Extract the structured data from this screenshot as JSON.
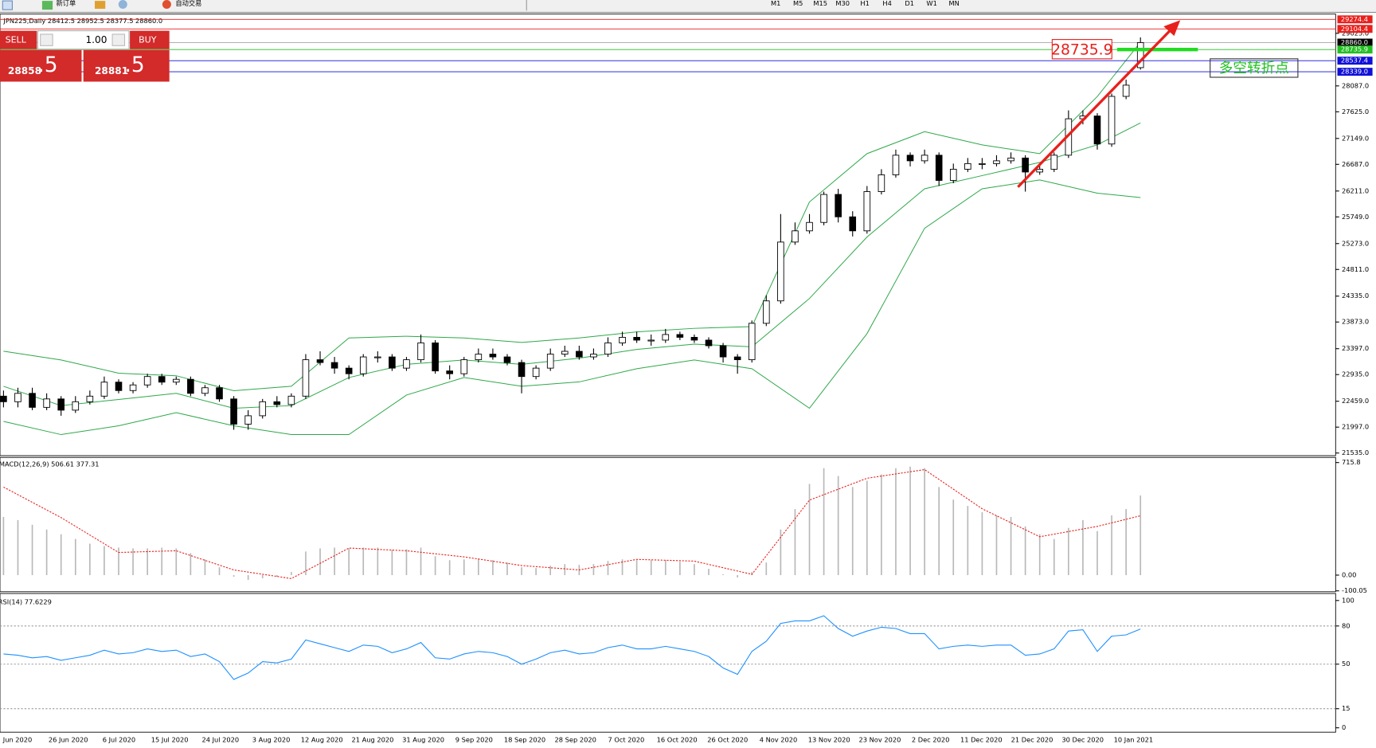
{
  "toolbar": {
    "new_order": "新订单",
    "auto_trading": "自动交易",
    "timeframes": [
      "M1",
      "M5",
      "M15",
      "M30",
      "H1",
      "H4",
      "D1",
      "W1",
      "MN"
    ]
  },
  "trade_panel": {
    "sell": "SELL",
    "buy": "BUY",
    "lots": "1.00",
    "sell_price_main": "28858",
    "sell_price_tail": ".5",
    "buy_price_main": "28881",
    "buy_price_tail": ".5"
  },
  "chart_data": [
    {
      "type": "candlestick",
      "title": "JPN225,Daily  28412.5 28952.5 28377.5 28860.0",
      "ylim": [
        21488,
        29338
      ],
      "yticks": [
        {
          "value": 29025,
          "label": "29025.0"
        },
        {
          "value": 28087,
          "label": "28087.0"
        },
        {
          "value": 27625,
          "label": "27625.0"
        },
        {
          "value": 27149,
          "label": "27149.0"
        },
        {
          "value": 26687,
          "label": "26687.0"
        },
        {
          "value": 26211,
          "label": "26211.0"
        },
        {
          "value": 25749,
          "label": "25749.0"
        },
        {
          "value": 25273,
          "label": "25273.0"
        },
        {
          "value": 24811,
          "label": "24811.0"
        },
        {
          "value": 24335,
          "label": "24335.0"
        },
        {
          "value": 23873,
          "label": "23873.0"
        },
        {
          "value": 23397,
          "label": "23397.0"
        },
        {
          "value": 22935,
          "label": "22935.0"
        },
        {
          "value": 22459,
          "label": "22459.0"
        },
        {
          "value": 21997,
          "label": "21997.0"
        },
        {
          "value": 21535,
          "label": "21535.0"
        }
      ],
      "date_labels": [
        "Jun 2020",
        "26 Jun 2020",
        "6 Jul 2020",
        "15 Jul 2020",
        "24 Jul 2020",
        "3 Aug 2020",
        "12 Aug 2020",
        "21 Aug 2020",
        "31 Aug 2020",
        "9 Sep 2020",
        "18 Sep 2020",
        "28 Sep 2020",
        "7 Oct 2020",
        "16 Oct 2020",
        "26 Oct 2020",
        "4 Nov 2020",
        "13 Nov 2020",
        "23 Nov 2020",
        "2 Dec 2020",
        "11 Dec 2020",
        "21 Dec 2020",
        "30 Dec 2020",
        "10 Jan 2021"
      ],
      "open": [
        22550,
        22450,
        22600,
        22350,
        22500,
        22300,
        22450,
        22550,
        22800,
        22650,
        22750,
        22900,
        22800,
        22850,
        22600,
        22700,
        22500,
        22050,
        22200,
        22450,
        22400,
        22550,
        23200,
        23150,
        23050,
        22950,
        23250,
        23250,
        23050,
        23200,
        23500,
        23000,
        22950,
        23200,
        23300,
        23250,
        23150,
        22900,
        23050,
        23300,
        23350,
        23250,
        23300,
        23500,
        23600,
        23550,
        23550,
        23650,
        23600,
        23550,
        23450,
        23250,
        23200,
        23850,
        24250,
        25300,
        25500,
        25650,
        26150,
        25750,
        25500,
        26200,
        26500,
        26850,
        26750,
        26850,
        26400,
        26600,
        26700,
        26700,
        26750,
        26800,
        26550,
        26600,
        26850,
        27500,
        27550,
        27050,
        27900,
        28412.5
      ],
      "high": [
        22650,
        22700,
        22700,
        22600,
        22550,
        22550,
        22650,
        22900,
        22850,
        22800,
        22950,
        22950,
        22900,
        22900,
        22750,
        22750,
        22550,
        22300,
        22500,
        22550,
        22600,
        23300,
        23350,
        23250,
        23100,
        23300,
        23350,
        23300,
        23250,
        23650,
        23550,
        23100,
        23250,
        23400,
        23400,
        23300,
        23200,
        23100,
        23400,
        23450,
        23450,
        23400,
        23600,
        23700,
        23700,
        23650,
        23750,
        23700,
        23650,
        23600,
        23500,
        23300,
        23900,
        24350,
        25800,
        25650,
        25800,
        26200,
        26250,
        25850,
        26300,
        26600,
        26950,
        26900,
        26950,
        26900,
        26700,
        26800,
        26800,
        26850,
        26900,
        26850,
        26700,
        26900,
        27650,
        27650,
        27600,
        27950,
        28200,
        28952.5
      ],
      "low": [
        22350,
        22350,
        22300,
        22300,
        22200,
        22250,
        22400,
        22500,
        22600,
        22600,
        22700,
        22750,
        22750,
        22550,
        22550,
        22450,
        21950,
        21950,
        22150,
        22350,
        22350,
        22500,
        23100,
        22950,
        22850,
        22900,
        23150,
        23000,
        23000,
        23150,
        22950,
        22850,
        22900,
        23150,
        23200,
        23100,
        22600,
        22850,
        23000,
        23250,
        23200,
        23200,
        23250,
        23450,
        23500,
        23450,
        23500,
        23550,
        23500,
        23400,
        23150,
        22950,
        23150,
        23800,
        24200,
        25250,
        25450,
        25600,
        25650,
        25400,
        25450,
        26150,
        26450,
        26650,
        26700,
        26300,
        26350,
        26550,
        26600,
        26650,
        26700,
        26200,
        26500,
        26550,
        26800,
        27400,
        26950,
        27000,
        27850,
        28377.5
      ],
      "close": [
        22450,
        22600,
        22350,
        22500,
        22300,
        22450,
        22550,
        22800,
        22650,
        22750,
        22900,
        22800,
        22850,
        22600,
        22700,
        22500,
        22050,
        22200,
        22450,
        22400,
        22550,
        23200,
        23150,
        23050,
        22950,
        23250,
        23250,
        23050,
        23200,
        23500,
        23000,
        22950,
        23200,
        23300,
        23250,
        23150,
        22900,
        23050,
        23300,
        23350,
        23250,
        23300,
        23500,
        23600,
        23550,
        23550,
        23650,
        23600,
        23550,
        23450,
        23250,
        23200,
        23850,
        24250,
        25300,
        25500,
        25650,
        26150,
        25750,
        25500,
        26200,
        26500,
        26850,
        26750,
        26850,
        26400,
        26600,
        26700,
        26700,
        26750,
        26800,
        26550,
        26600,
        26850,
        27500,
        27550,
        27050,
        27900,
        28100,
        28860
      ],
      "bands": [
        {
          "color": "#2ea84a",
          "x": [
            0,
            4,
            8,
            12,
            16,
            20,
            24,
            28,
            32,
            36,
            40,
            44,
            48,
            52,
            56,
            60,
            64,
            68,
            72,
            76,
            79
          ],
          "values": [
            23352,
            23196,
            22960,
            22914,
            22647,
            22726,
            23588,
            23619,
            23588,
            23509,
            23588,
            23697,
            23760,
            23791,
            26016,
            26878,
            27270,
            27035,
            26878,
            27897,
            28868
          ]
        },
        {
          "color": "#2ea84a",
          "x": [
            0,
            4,
            8,
            12,
            16,
            20,
            24,
            28,
            32,
            36,
            40,
            44,
            48,
            52,
            56,
            60,
            64,
            68,
            72,
            76,
            79
          ],
          "values": [
            22726,
            22381,
            22491,
            22600,
            22334,
            22381,
            22882,
            23117,
            23196,
            23117,
            23227,
            23384,
            23478,
            23431,
            24293,
            25390,
            26251,
            26486,
            26722,
            27035,
            27427
          ]
        },
        {
          "color": "#2ea84a",
          "x": [
            0,
            4,
            8,
            12,
            16,
            20,
            24,
            28,
            32,
            36,
            40,
            44,
            48,
            52,
            56,
            60,
            64,
            68,
            72,
            76,
            79
          ],
          "values": [
            22099,
            21864,
            22021,
            22256,
            22021,
            21864,
            21864,
            22569,
            22882,
            22726,
            22804,
            23039,
            23196,
            23039,
            22334,
            23666,
            25546,
            26251,
            26408,
            26173,
            26095
          ]
        }
      ],
      "levels": [
        {
          "value": 29274.4,
          "label": "29274.4",
          "color": "#e8201c"
        },
        {
          "value": 29104.4,
          "label": "29104.4",
          "color": "#e8201c"
        },
        {
          "value": 28860,
          "label": "28860.0",
          "color": "#000000"
        },
        {
          "value": 28735.9,
          "label": "28735.9",
          "color": "#22c022"
        },
        {
          "value": 28537.4,
          "label": "28537.4",
          "color": "#1010d8"
        },
        {
          "value": 28339,
          "label": "28339.0",
          "color": "#1010d8"
        }
      ],
      "annotations": [
        "28735.9",
        "多空转折点"
      ]
    },
    {
      "type": "macd",
      "title": "MACD(12,26,9) 506.61 377.31",
      "ylim": [
        -100.05,
        743
      ],
      "yticks": [
        715.8,
        {
          "value": 0,
          "label": "0.00"
        },
        -100.05
      ],
      "histogram": {
        "color": "#b8b8b8",
        "values": [
          370,
          350,
          320,
          290,
          260,
          230,
          200,
          185,
          175,
          170,
          170,
          175,
          170,
          140,
          100,
          50,
          -10,
          -30,
          -20,
          -10,
          20,
          150,
          170,
          175,
          170,
          175,
          175,
          160,
          165,
          175,
          120,
          95,
          100,
          105,
          95,
          80,
          50,
          45,
          60,
          70,
          65,
          70,
          90,
          100,
          95,
          95,
          95,
          85,
          70,
          40,
          5,
          -15,
          20,
          80,
          290,
          420,
          580,
          680,
          630,
          560,
          600,
          640,
          680,
          690,
          680,
          560,
          480,
          440,
          400,
          380,
          370,
          310,
          260,
          230,
          300,
          350,
          280,
          380,
          420,
          506.61
        ]
      },
      "signal": {
        "color": "#e8201c",
        "x": [
          0,
          4,
          8,
          12,
          16,
          20,
          24,
          28,
          32,
          36,
          40,
          44,
          48,
          52,
          56,
          60,
          64,
          68,
          72,
          76,
          79
        ],
        "values": [
          560,
          366,
          144,
          155,
          33,
          -22,
          172,
          155,
          116,
          61,
          33,
          100,
          89,
          5,
          477,
          616,
          671,
          422,
          244,
          310,
          377.31
        ]
      }
    },
    {
      "type": "line",
      "title": "RSI(14) 77.6229",
      "ylim": [
        0,
        100
      ],
      "yticks": [
        100,
        80,
        50,
        15,
        0
      ],
      "series": [
        {
          "color": "#1e90ff",
          "values": [
            58,
            57,
            55,
            56,
            53,
            55,
            57,
            61,
            58,
            59,
            62,
            60,
            61,
            56,
            58,
            52,
            38,
            43,
            52,
            51,
            54,
            69,
            66,
            63,
            60,
            65,
            64,
            59,
            62,
            67,
            55,
            54,
            58,
            60,
            59,
            56,
            50,
            54,
            59,
            61,
            58,
            59,
            63,
            65,
            62,
            62,
            64,
            62,
            60,
            56,
            47,
            42,
            60,
            68,
            82,
            84,
            84,
            88,
            78,
            72,
            76,
            79,
            78,
            74,
            74,
            62,
            64,
            65,
            64,
            65,
            65,
            57,
            58,
            62,
            76,
            77,
            60,
            72,
            73,
            77.6229
          ]
        }
      ]
    }
  ]
}
